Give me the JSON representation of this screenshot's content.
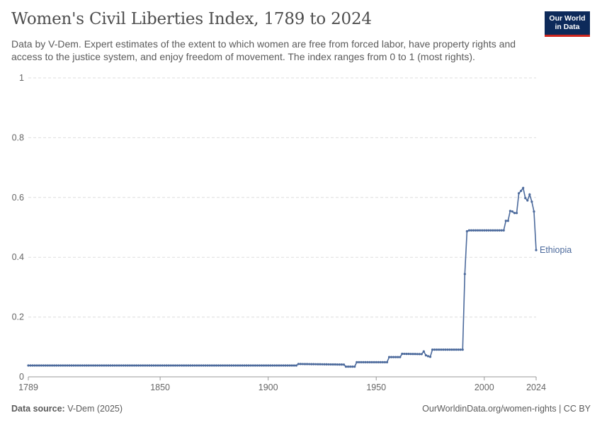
{
  "header": {
    "title": "Women's Civil Liberties Index, 1789 to 2024",
    "subtitle": "Data by V-Dem. Expert estimates of the extent to which women are free from forced labor, have property rights and access to the justice system, and enjoy freedom of movement. The index ranges from 0 to 1 (most rights)."
  },
  "logo": {
    "line1": "Our World",
    "line2": "in Data",
    "bg_color": "#0d2a5a",
    "accent_color": "#ce261e"
  },
  "footer": {
    "source_label": "Data source:",
    "source_value": "V-Dem (2025)",
    "credit": "OurWorldinData.org/women-rights | CC BY"
  },
  "chart_data": {
    "type": "line",
    "title": "Women's Civil Liberties Index, 1789 to 2024",
    "xlabel": "",
    "ylabel": "",
    "xlim": [
      1789,
      2024
    ],
    "ylim": [
      0,
      1
    ],
    "x_ticks": [
      1789,
      1850,
      1900,
      1950,
      2000,
      2024
    ],
    "y_ticks": [
      0,
      0.2,
      0.4,
      0.6,
      0.8,
      1
    ],
    "y_tick_labels": [
      "0",
      "0.2",
      "0.4",
      "0.6",
      "0.8",
      "1"
    ],
    "grid": "horizontal dashed",
    "series": [
      {
        "name": "Ethiopia",
        "color": "#4c6a9c",
        "breakpoints": [
          [
            1789,
            0.038
          ],
          [
            1913,
            0.038
          ],
          [
            1914,
            0.043
          ],
          [
            1935,
            0.041
          ],
          [
            1936,
            0.034
          ],
          [
            1940,
            0.034
          ],
          [
            1941,
            0.049
          ],
          [
            1955,
            0.049
          ],
          [
            1956,
            0.066
          ],
          [
            1961,
            0.066
          ],
          [
            1962,
            0.077
          ],
          [
            1971,
            0.076
          ],
          [
            1972,
            0.085
          ],
          [
            1973,
            0.072
          ],
          [
            1974,
            0.069
          ],
          [
            1975,
            0.067
          ],
          [
            1976,
            0.091
          ],
          [
            1990,
            0.091
          ],
          [
            1991,
            0.344
          ],
          [
            1992,
            0.487
          ],
          [
            1993,
            0.49
          ],
          [
            2009,
            0.49
          ],
          [
            2010,
            0.522
          ],
          [
            2011,
            0.522
          ],
          [
            2012,
            0.555
          ],
          [
            2013,
            0.553
          ],
          [
            2014,
            0.548
          ],
          [
            2015,
            0.548
          ],
          [
            2016,
            0.614
          ],
          [
            2017,
            0.622
          ],
          [
            2018,
            0.632
          ],
          [
            2019,
            0.598
          ],
          [
            2020,
            0.59
          ],
          [
            2021,
            0.61
          ],
          [
            2022,
            0.586
          ],
          [
            2023,
            0.553
          ],
          [
            2024,
            0.424
          ]
        ]
      }
    ]
  }
}
